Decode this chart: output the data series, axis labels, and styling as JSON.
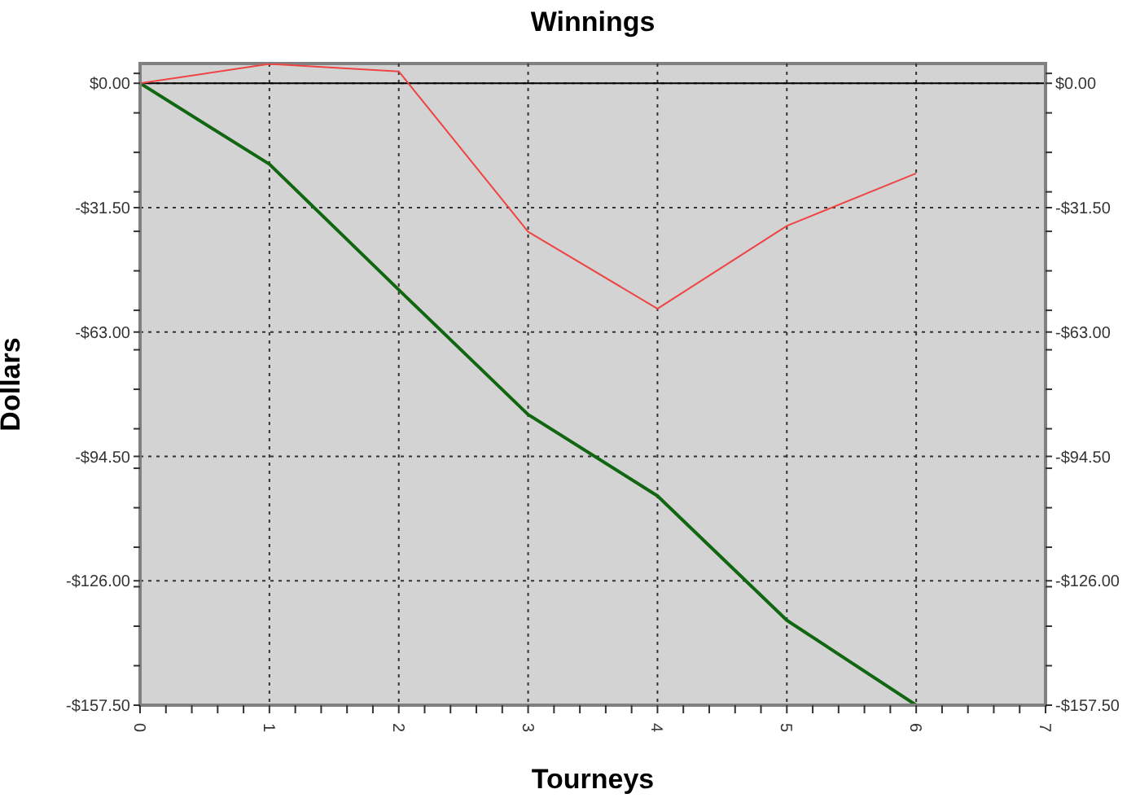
{
  "chart_data": {
    "type": "line",
    "title": "Winnings",
    "xlabel": "Tourneys",
    "ylabel": "Dollars",
    "x": [
      0,
      1,
      2,
      3,
      4,
      5,
      6
    ],
    "series": [
      {
        "color": "#116611",
        "values": [
          0,
          -20.5,
          -52.3,
          -83.9,
          -104.5,
          -136,
          -157.5
        ]
      },
      {
        "color": "#ee4444",
        "values": [
          0,
          4.9,
          3,
          -37.6,
          -57.1,
          -36.1,
          -22.8
        ]
      }
    ],
    "xlim": [
      0,
      7
    ],
    "xticks": [
      0,
      {
        "value": 0.2,
        "label": null
      },
      {
        "value": 0.4,
        "label": null
      },
      {
        "value": 0.6,
        "label": null
      },
      {
        "value": 0.8,
        "label": null
      },
      1,
      {
        "value": 1.2,
        "label": null
      },
      {
        "value": 1.4,
        "label": null
      },
      {
        "value": 1.6,
        "label": null
      },
      {
        "value": 1.8,
        "label": null
      },
      2,
      {
        "value": 2.2,
        "label": null
      },
      {
        "value": 2.4,
        "label": null
      },
      {
        "value": 2.6,
        "label": null
      },
      {
        "value": 2.8,
        "label": null
      },
      3,
      {
        "value": 3.2,
        "label": null
      },
      {
        "value": 3.4,
        "label": null
      },
      {
        "value": 3.6,
        "label": null
      },
      {
        "value": 3.8,
        "label": null
      },
      4,
      {
        "value": 4.2,
        "label": null
      },
      {
        "value": 4.4,
        "label": null
      },
      {
        "value": 4.6,
        "label": null
      },
      {
        "value": 4.8,
        "label": null
      },
      5,
      {
        "value": 5.2,
        "label": null
      },
      {
        "value": 5.4,
        "label": null
      },
      {
        "value": 5.6,
        "label": null
      },
      {
        "value": 5.8,
        "label": null
      },
      6,
      {
        "value": 6.2,
        "label": null
      },
      {
        "value": 6.4,
        "label": null
      },
      {
        "value": 6.6,
        "label": null
      },
      {
        "value": 6.8,
        "label": null
      },
      7
    ],
    "ylim": [
      -157.5,
      5
    ],
    "yticks": [
      {
        "value": 2.5,
        "label": null
      },
      {
        "value": 0,
        "label": "$0.00"
      },
      {
        "value": -7.5,
        "label": null
      },
      {
        "value": -17.5,
        "label": null
      },
      {
        "value": -27.5,
        "label": null
      },
      {
        "value": -31.5,
        "label": "-$31.50"
      },
      {
        "value": -37.5,
        "label": null
      },
      {
        "value": -47.5,
        "label": null
      },
      {
        "value": -57.5,
        "label": null
      },
      {
        "value": -63,
        "label": "-$63.00"
      },
      {
        "value": -67.5,
        "label": null
      },
      {
        "value": -77.5,
        "label": null
      },
      {
        "value": -87.5,
        "label": null
      },
      {
        "value": -94.5,
        "label": "-$94.50"
      },
      {
        "value": -97.5,
        "label": null
      },
      {
        "value": -107.5,
        "label": null
      },
      {
        "value": -117.5,
        "label": null
      },
      {
        "value": -126,
        "label": "-$126.00"
      },
      {
        "value": -127.5,
        "label": null
      },
      {
        "value": -137.5,
        "label": null
      },
      {
        "value": -147.5,
        "label": null
      },
      {
        "value": -157.5,
        "label": "-$157.50"
      }
    ],
    "y2lim": [
      -157.5,
      5
    ],
    "y2ticks": [
      {
        "value": 2.5,
        "label": null
      },
      {
        "value": 0,
        "label": "$0.00"
      },
      {
        "value": -7.5,
        "label": null
      },
      {
        "value": -17.5,
        "label": null
      },
      {
        "value": -27.5,
        "label": null
      },
      {
        "value": -31.5,
        "label": "-$31.50"
      },
      {
        "value": -37.5,
        "label": null
      },
      {
        "value": -47.5,
        "label": null
      },
      {
        "value": -57.5,
        "label": null
      },
      {
        "value": -63,
        "label": "-$63.00"
      },
      {
        "value": -67.5,
        "label": null
      },
      {
        "value": -77.5,
        "label": null
      },
      {
        "value": -87.5,
        "label": null
      },
      {
        "value": -94.5,
        "label": "-$94.50"
      },
      {
        "value": -97.5,
        "label": null
      },
      {
        "value": -107.5,
        "label": null
      },
      {
        "value": -117.5,
        "label": null
      },
      {
        "value": -126,
        "label": "-$126.00"
      },
      {
        "value": -127.5,
        "label": null
      },
      {
        "value": -137.5,
        "label": null
      },
      {
        "value": -147.5,
        "label": null
      },
      {
        "value": -157.5,
        "label": "-$157.50"
      }
    ],
    "grid": true,
    "ref_lines": [
      {
        "axis": "y",
        "value": 0,
        "color": "#000000"
      }
    ]
  }
}
